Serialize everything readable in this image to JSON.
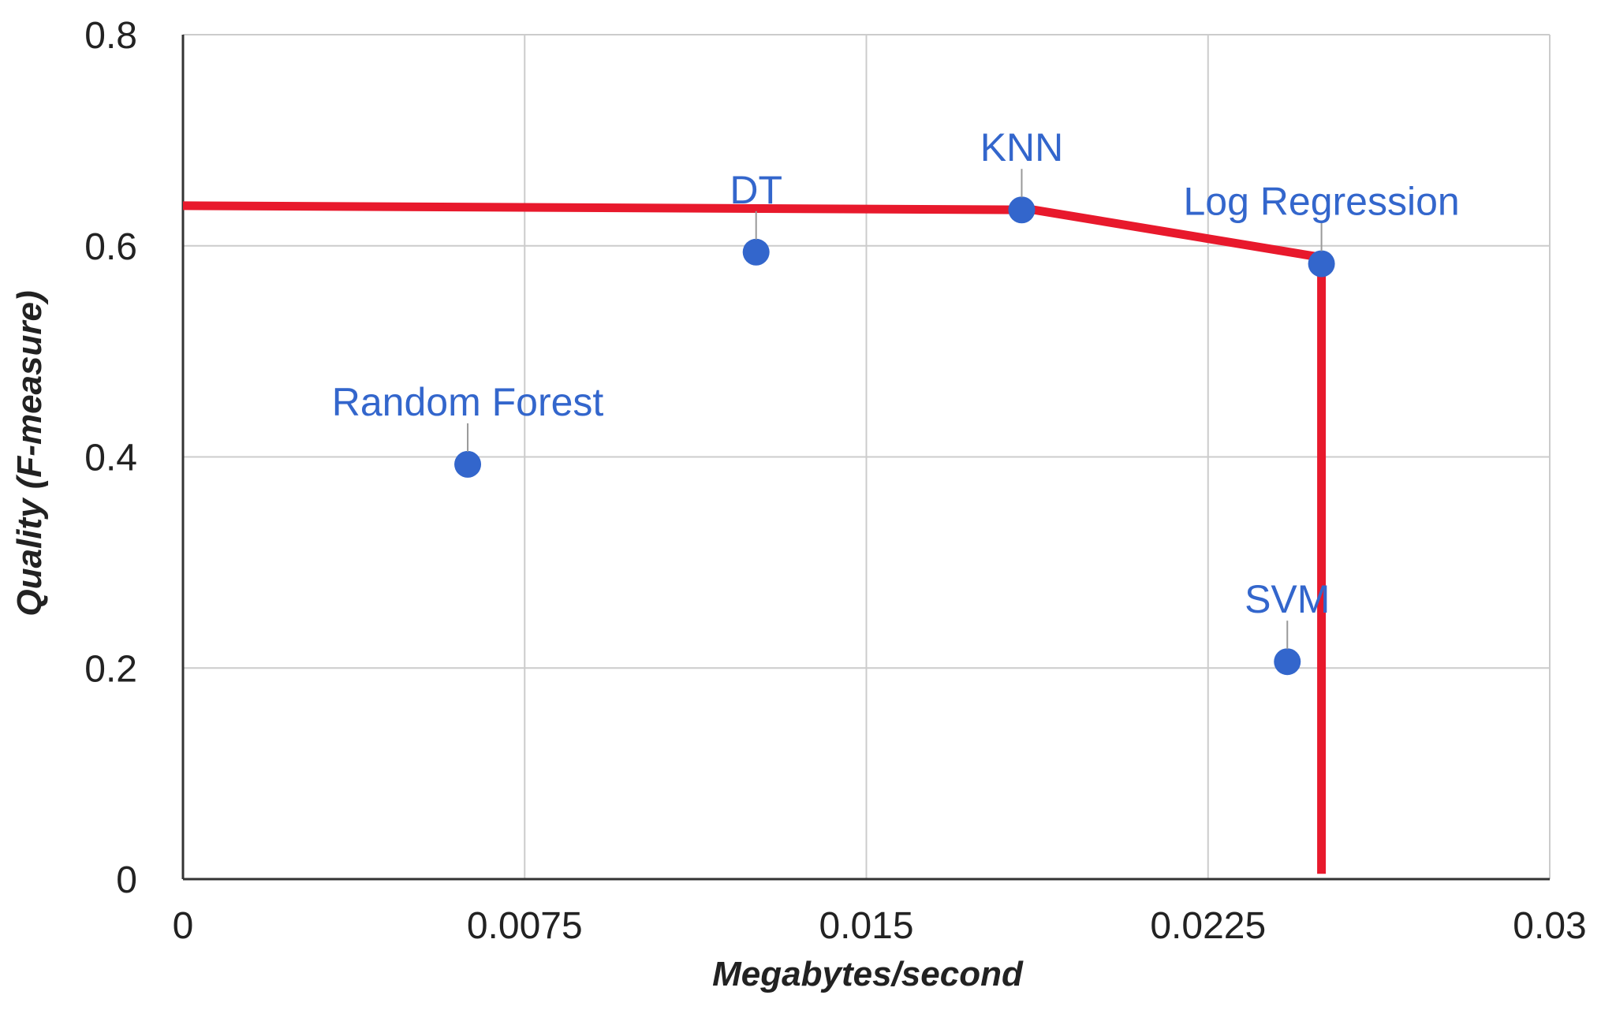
{
  "chart_data": {
    "type": "scatter",
    "title": "",
    "xlabel": "Megabytes/second",
    "ylabel": "Quality (F-measure)",
    "xlim": [
      0,
      0.03
    ],
    "ylim": [
      0,
      0.8
    ],
    "x_ticks": [
      "0",
      "0.0075",
      "0.015",
      "0.0225",
      "0.03"
    ],
    "x_tick_values": [
      0,
      0.0075,
      0.015,
      0.0225,
      0.03
    ],
    "y_ticks": [
      "0",
      "0.2",
      "0.4",
      "0.6",
      "0.8"
    ],
    "y_tick_values": [
      0,
      0.2,
      0.4,
      0.6,
      0.8
    ],
    "grid": true,
    "points": [
      {
        "label": "Random Forest",
        "x": 0.00625,
        "y": 0.393
      },
      {
        "label": "DT",
        "x": 0.01258,
        "y": 0.594
      },
      {
        "label": "KNN",
        "x": 0.01841,
        "y": 0.634
      },
      {
        "label": "SVM",
        "x": 0.02424,
        "y": 0.206
      },
      {
        "label": "Log Regression",
        "x": 0.02499,
        "y": 0.583
      }
    ],
    "frontier": {
      "points": [
        [
          0,
          0.638
        ],
        [
          0.01868,
          0.634
        ],
        [
          0.02499,
          0.589
        ],
        [
          0.02499,
          0.005
        ]
      ]
    },
    "colors": {
      "points": "#3366cc",
      "labels": "#3366cc",
      "frontier": "#e8192c",
      "grid": "#cccccc",
      "axis": "#333333",
      "text": "#222222"
    }
  }
}
